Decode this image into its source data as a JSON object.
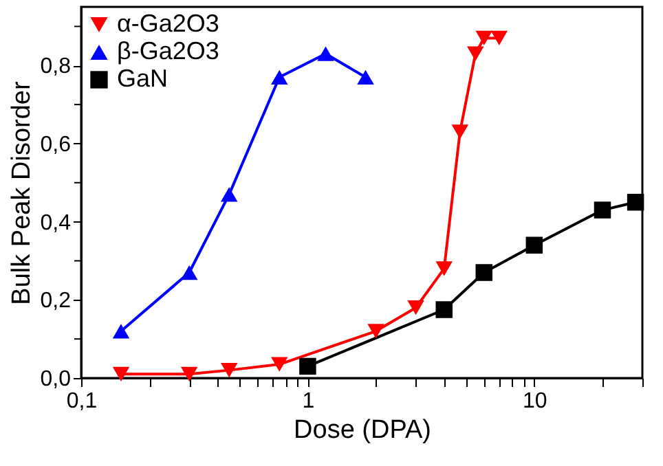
{
  "chart_data": {
    "type": "line",
    "xlabel": "Dose (DPA)",
    "ylabel": "Bulk Peak Disorder",
    "log": "x",
    "grid": false,
    "legend": "top left",
    "line_style": "solid",
    "xlim": [
      0.1,
      30
    ],
    "ylim": [
      0,
      0.95
    ],
    "xticks": [
      {
        "value": 0.1,
        "label": "0,1"
      },
      1,
      10,
      {
        "value": 0.2,
        "label": null
      },
      {
        "value": 0.3,
        "label": null
      },
      {
        "value": 0.4,
        "label": null
      },
      {
        "value": 0.5,
        "label": null
      },
      {
        "value": 0.6,
        "label": null
      },
      {
        "value": 0.7,
        "label": null
      },
      {
        "value": 0.8,
        "label": null
      },
      {
        "value": 0.9,
        "label": null
      },
      {
        "value": 2,
        "label": null
      },
      {
        "value": 3,
        "label": null
      },
      {
        "value": 4,
        "label": null
      },
      {
        "value": 5,
        "label": null
      },
      {
        "value": 6,
        "label": null
      },
      {
        "value": 7,
        "label": null
      },
      {
        "value": 8,
        "label": null
      },
      {
        "value": 9,
        "label": null
      },
      {
        "value": 20,
        "label": null
      },
      {
        "value": 30,
        "label": null
      }
    ],
    "yticks": [
      {
        "value": 0,
        "label": "0,0"
      },
      {
        "value": 0.2,
        "label": "0,2"
      },
      {
        "value": 0.4,
        "label": "0,4"
      },
      {
        "value": 0.6,
        "label": "0,6"
      },
      {
        "value": 0.8,
        "label": "0,8"
      },
      {
        "value": 0.1,
        "label": null
      },
      {
        "value": 0.3,
        "label": null
      },
      {
        "value": 0.5,
        "label": null
      },
      {
        "value": 0.7,
        "label": null
      },
      {
        "value": 0.9,
        "label": null
      }
    ],
    "series": [
      {
        "name": "α-Ga2O3",
        "color": "#ff0000",
        "marker": "triangle-down",
        "x": [
          0.15,
          0.3,
          0.45,
          0.75,
          2,
          3,
          4,
          4.7,
          5.5,
          6,
          7
        ],
        "values": [
          0.01,
          0.01,
          0.02,
          0.035,
          0.12,
          0.18,
          0.28,
          0.63,
          0.83,
          0.87,
          0.87
        ]
      },
      {
        "name": "β-Ga2O3",
        "color": "#0000ff",
        "marker": "triangle",
        "x": [
          0.15,
          0.3,
          0.45,
          0.75,
          1.2,
          1.8
        ],
        "values": [
          0.12,
          0.27,
          0.47,
          0.77,
          0.83,
          0.77
        ]
      },
      {
        "name": "GaN",
        "color": "#000000",
        "marker": "square",
        "x": [
          1,
          4,
          6,
          10,
          20,
          28
        ],
        "values": [
          0.03,
          0.175,
          0.27,
          0.34,
          0.43,
          0.45
        ]
      }
    ]
  }
}
